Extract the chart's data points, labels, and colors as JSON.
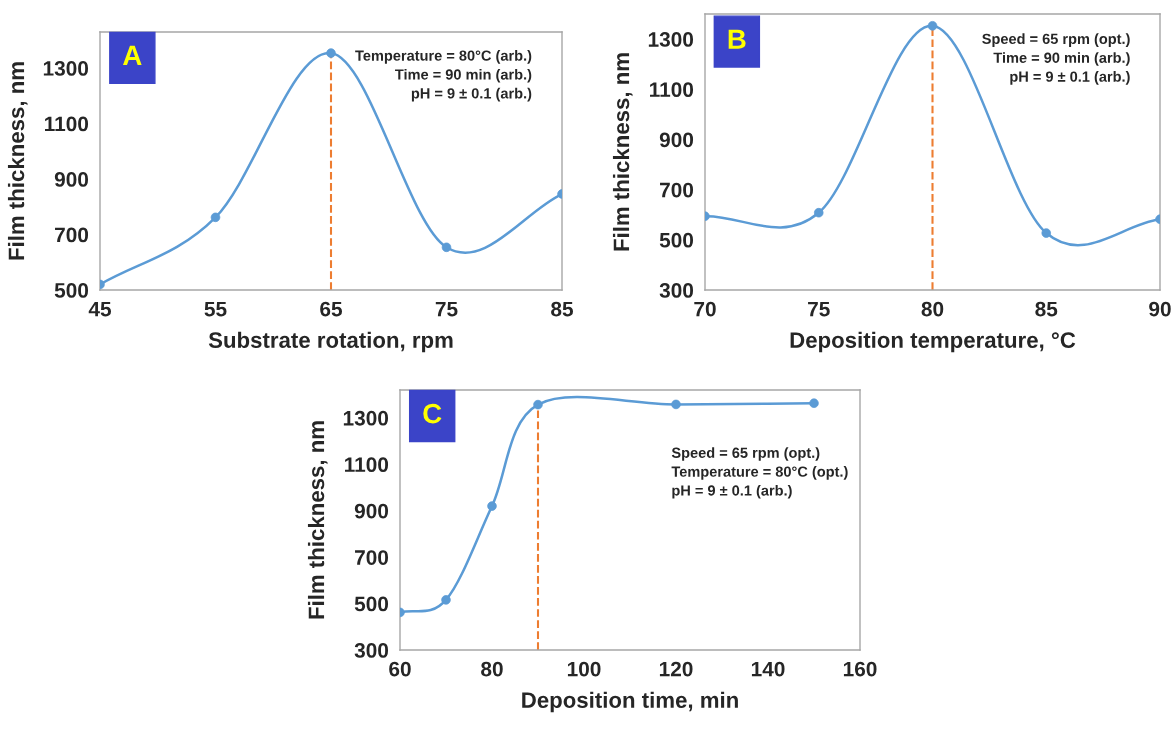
{
  "chart_data": [
    {
      "type": "line",
      "xlabel": "Substrate rotation, rpm",
      "ylabel": "Film thickness, nm",
      "x": [
        45,
        55,
        65,
        75,
        85
      ],
      "xlim": [
        45,
        85
      ],
      "xticks": [
        45,
        55,
        65,
        75,
        85
      ],
      "ylim": [
        500,
        1430
      ],
      "yticks": [
        500,
        700,
        900,
        1100,
        1300
      ],
      "marker": "circle",
      "grid": false,
      "series": [
        {
          "color": "#5b9bd5",
          "values": [
            520,
            762,
            1354,
            654,
            846
          ]
        }
      ],
      "ref_lines": [
        {
          "axis": "x",
          "value": 65,
          "color": "#ed7d31",
          "line_style": "dashed"
        }
      ],
      "annotations": [
        "A",
        "Temperature = 80°C (arb.)\nTime = 90 min (arb.)\npH = 9 ± 0.1 (arb.)"
      ]
    },
    {
      "type": "line",
      "xlabel": "Deposition temperature, °C",
      "ylabel": "Film thickness, nm",
      "x": [
        70,
        75,
        80,
        85,
        90
      ],
      "xlim": [
        70,
        90
      ],
      "xticks": [
        70,
        75,
        80,
        85,
        90
      ],
      "ylim": [
        300,
        1400
      ],
      "yticks": [
        300,
        500,
        700,
        900,
        1100,
        1300
      ],
      "marker": "circle",
      "grid": false,
      "series": [
        {
          "color": "#5b9bd5",
          "values": [
            594,
            608,
            1353,
            527,
            582
          ]
        }
      ],
      "ref_lines": [
        {
          "axis": "x",
          "value": 80,
          "color": "#ed7d31",
          "line_style": "dashed"
        }
      ],
      "annotations": [
        "B",
        "Speed = 65 rpm (opt.)\nTime = 90 min (arb.)\npH = 9 ± 0.1 (arb.)"
      ]
    },
    {
      "type": "line",
      "xlabel": "Deposition time, min",
      "ylabel": "Film thickness, nm",
      "x": [
        60,
        70,
        80,
        90,
        120,
        150
      ],
      "xlim": [
        60,
        160
      ],
      "xticks": [
        60,
        80,
        100,
        120,
        140,
        160
      ],
      "ylim": [
        300,
        1420
      ],
      "yticks": [
        300,
        500,
        700,
        900,
        1100,
        1300
      ],
      "marker": "circle",
      "grid": false,
      "series": [
        {
          "color": "#5b9bd5",
          "values": [
            462,
            516,
            920,
            1357,
            1358,
            1363
          ]
        }
      ],
      "ref_lines": [
        {
          "axis": "x",
          "value": 90,
          "color": "#ed7d31",
          "line_style": "dashed"
        }
      ],
      "annotations": [
        "C",
        "Speed = 65 rpm (opt.)\nTemperature = 80°C (opt.)\npH = 9 ± 0.1 (arb.)"
      ]
    }
  ]
}
